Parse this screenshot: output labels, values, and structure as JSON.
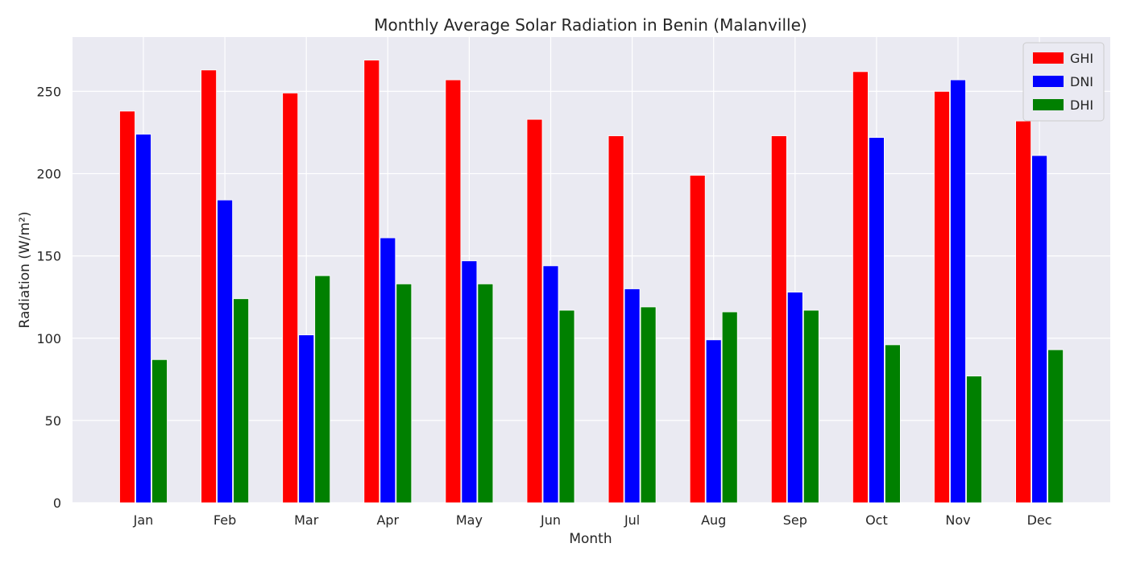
{
  "chart_data": {
    "type": "bar",
    "title": "Monthly Average Solar Radiation in Benin (Malanville)",
    "xlabel": "Month",
    "ylabel": "Radiation (W/m²)",
    "categories": [
      "Jan",
      "Feb",
      "Mar",
      "Apr",
      "May",
      "Jun",
      "Jul",
      "Aug",
      "Sep",
      "Oct",
      "Nov",
      "Dec"
    ],
    "series": [
      {
        "name": "GHI",
        "color": "#ff0000",
        "values": [
          238,
          263,
          249,
          269,
          257,
          233,
          223,
          199,
          223,
          262,
          250,
          232
        ]
      },
      {
        "name": "DNI",
        "color": "#0000ff",
        "values": [
          224,
          184,
          102,
          161,
          147,
          144,
          130,
          99,
          128,
          222,
          257,
          211
        ]
      },
      {
        "name": "DHI",
        "color": "#008000",
        "values": [
          87,
          124,
          138,
          133,
          133,
          117,
          119,
          116,
          117,
          96,
          77,
          93
        ]
      }
    ],
    "ylim": [
      0,
      283
    ],
    "yticks": [
      0,
      50,
      100,
      150,
      200,
      250
    ],
    "grid": true,
    "legend_position": "top-right",
    "background": "#eaeaf2"
  }
}
